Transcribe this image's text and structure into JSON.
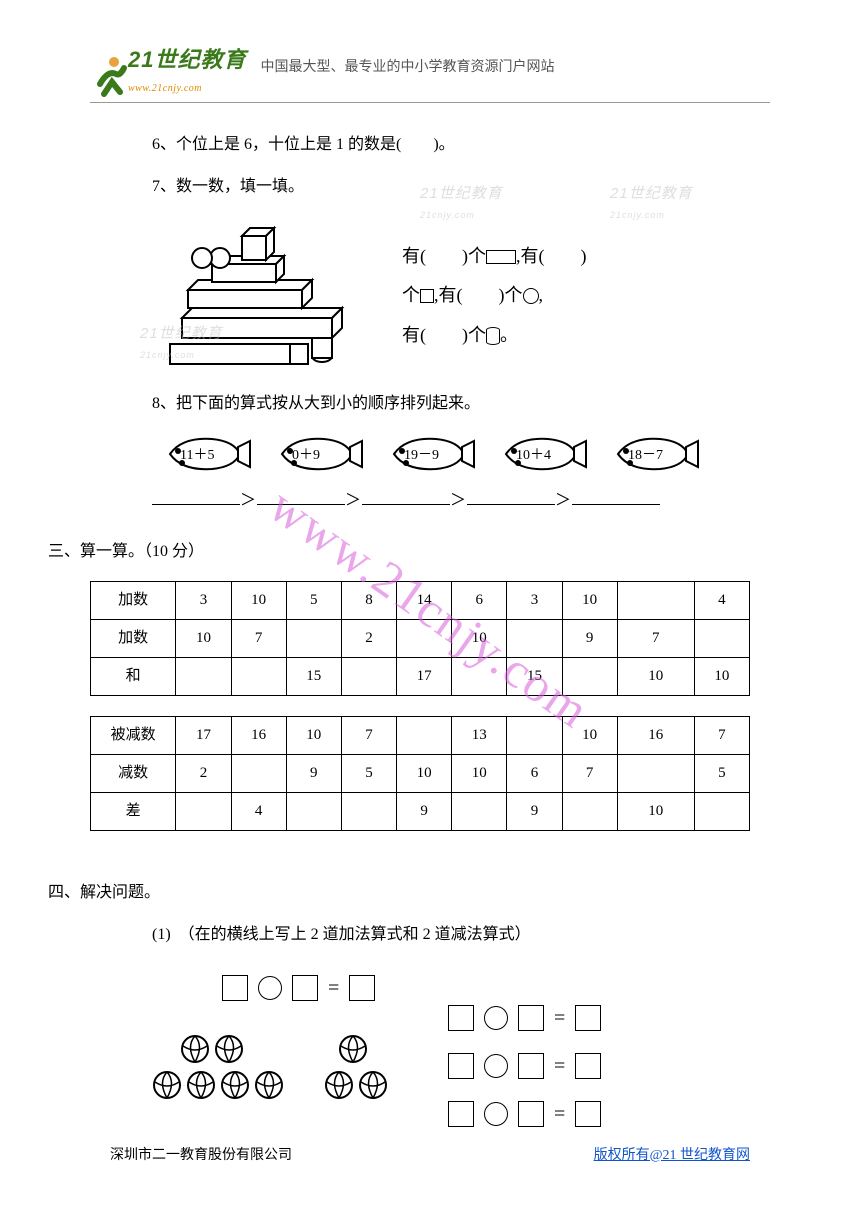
{
  "header": {
    "logo_main": "21世纪教育",
    "logo_url": "www.21cnjy.com",
    "subtitle": "中国最大型、最专业的中小学教育资源门户网站"
  },
  "questions": {
    "q6": "6、个位上是 6，十位上是 1 的数是(　　)。",
    "q7": "7、数一数，填一填。",
    "q7_text": {
      "l1a": "有(　　)个",
      "l1b": ",有(　　)",
      "l2a": "个",
      "l2b": ",有(　　)个",
      "l2c": ",",
      "l3a": "有(　　)个",
      "l3b": "。"
    },
    "q8": "8、把下面的算式按从大到小的顺序排列起来。",
    "fish": [
      "11＋5",
      "0＋9",
      "19－9",
      "10＋4",
      "18－7"
    ]
  },
  "section3": {
    "title": "三、算一算。（10 分）",
    "table1": {
      "rows": [
        {
          "label": "加数",
          "cells": [
            "3",
            "10",
            "5",
            "8",
            "14",
            "6",
            "3",
            "10",
            "",
            "4"
          ]
        },
        {
          "label": "加数",
          "cells": [
            "10",
            "7",
            "",
            "2",
            "",
            "10",
            "",
            "9",
            "7",
            ""
          ]
        },
        {
          "label": "和",
          "cells": [
            "",
            "",
            "15",
            "",
            "17",
            "",
            "15",
            "",
            "10",
            "10"
          ]
        }
      ]
    },
    "table2": {
      "rows": [
        {
          "label": "被减数",
          "cells": [
            "17",
            "16",
            "10",
            "7",
            "",
            "13",
            "",
            "10",
            "16",
            "7"
          ]
        },
        {
          "label": "减数",
          "cells": [
            "2",
            "",
            "9",
            "5",
            "10",
            "10",
            "6",
            "7",
            "",
            "5"
          ]
        },
        {
          "label": "差",
          "cells": [
            "",
            "4",
            "",
            "",
            "9",
            "",
            "9",
            "",
            "10",
            ""
          ]
        }
      ]
    }
  },
  "section4": {
    "title": "四、解决问题。",
    "sub1": "(1)　（在的横线上写上 2 道加法算式和 2 道减法算式）"
  },
  "footer": {
    "left": "深圳市二一教育股份有限公司",
    "right": "版权所有@21 世纪教育网"
  },
  "watermark": "www.21cnjy.com",
  "gray_wm": {
    "t": "21世纪教育",
    "u": "21cnjy.com"
  }
}
